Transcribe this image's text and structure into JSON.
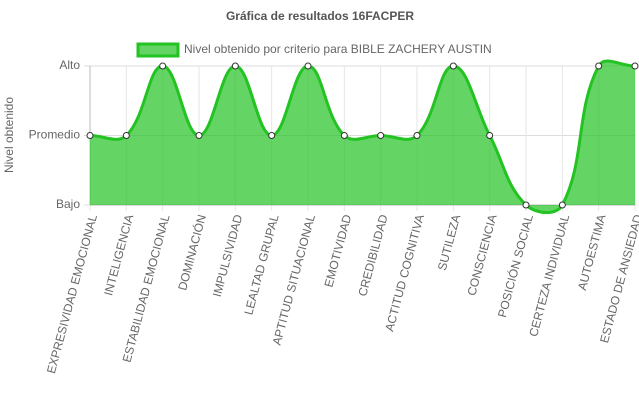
{
  "chart_data": {
    "type": "line",
    "title": "Gráfica de resultados 16FACPER",
    "y_label": "Nivel obtenido",
    "categories": [
      "EXPRESIVIDAD EMOCIONAL",
      "INTELIGENCIA",
      "ESTABILIDAD EMOCIONAL",
      "DOMINACIÓN",
      "IMPULSIVIDAD",
      "LEALTAD GRUPAL",
      "APTITUD SITUACIONAL",
      "EMOTIVIDAD",
      "CREDIBILIDAD",
      "ACTITUD COGNITIVA",
      "SUTILEZA",
      "CONSCIENCIA",
      "POSICIÓN SOCIAL",
      "CERTEZA INDIVIDUAL",
      "AUTOESTIMA",
      "ESTADO DE ANSIEDAD"
    ],
    "series": [
      {
        "name": "Nivel obtenido por criterio para BIBLE ZACHERY AUSTIN",
        "color": "#22c322",
        "values": [
          2,
          2,
          3,
          2,
          3,
          2,
          3,
          2,
          2,
          2,
          3,
          2,
          1,
          1,
          3,
          3
        ]
      }
    ],
    "ylim": [
      1,
      3
    ],
    "yticks": [
      {
        "value": 1,
        "label": "Bajo"
      },
      {
        "value": 2,
        "label": "Promedio"
      },
      {
        "value": 3,
        "label": "Alto"
      }
    ],
    "grid": true,
    "fill": true,
    "legend": "top"
  }
}
